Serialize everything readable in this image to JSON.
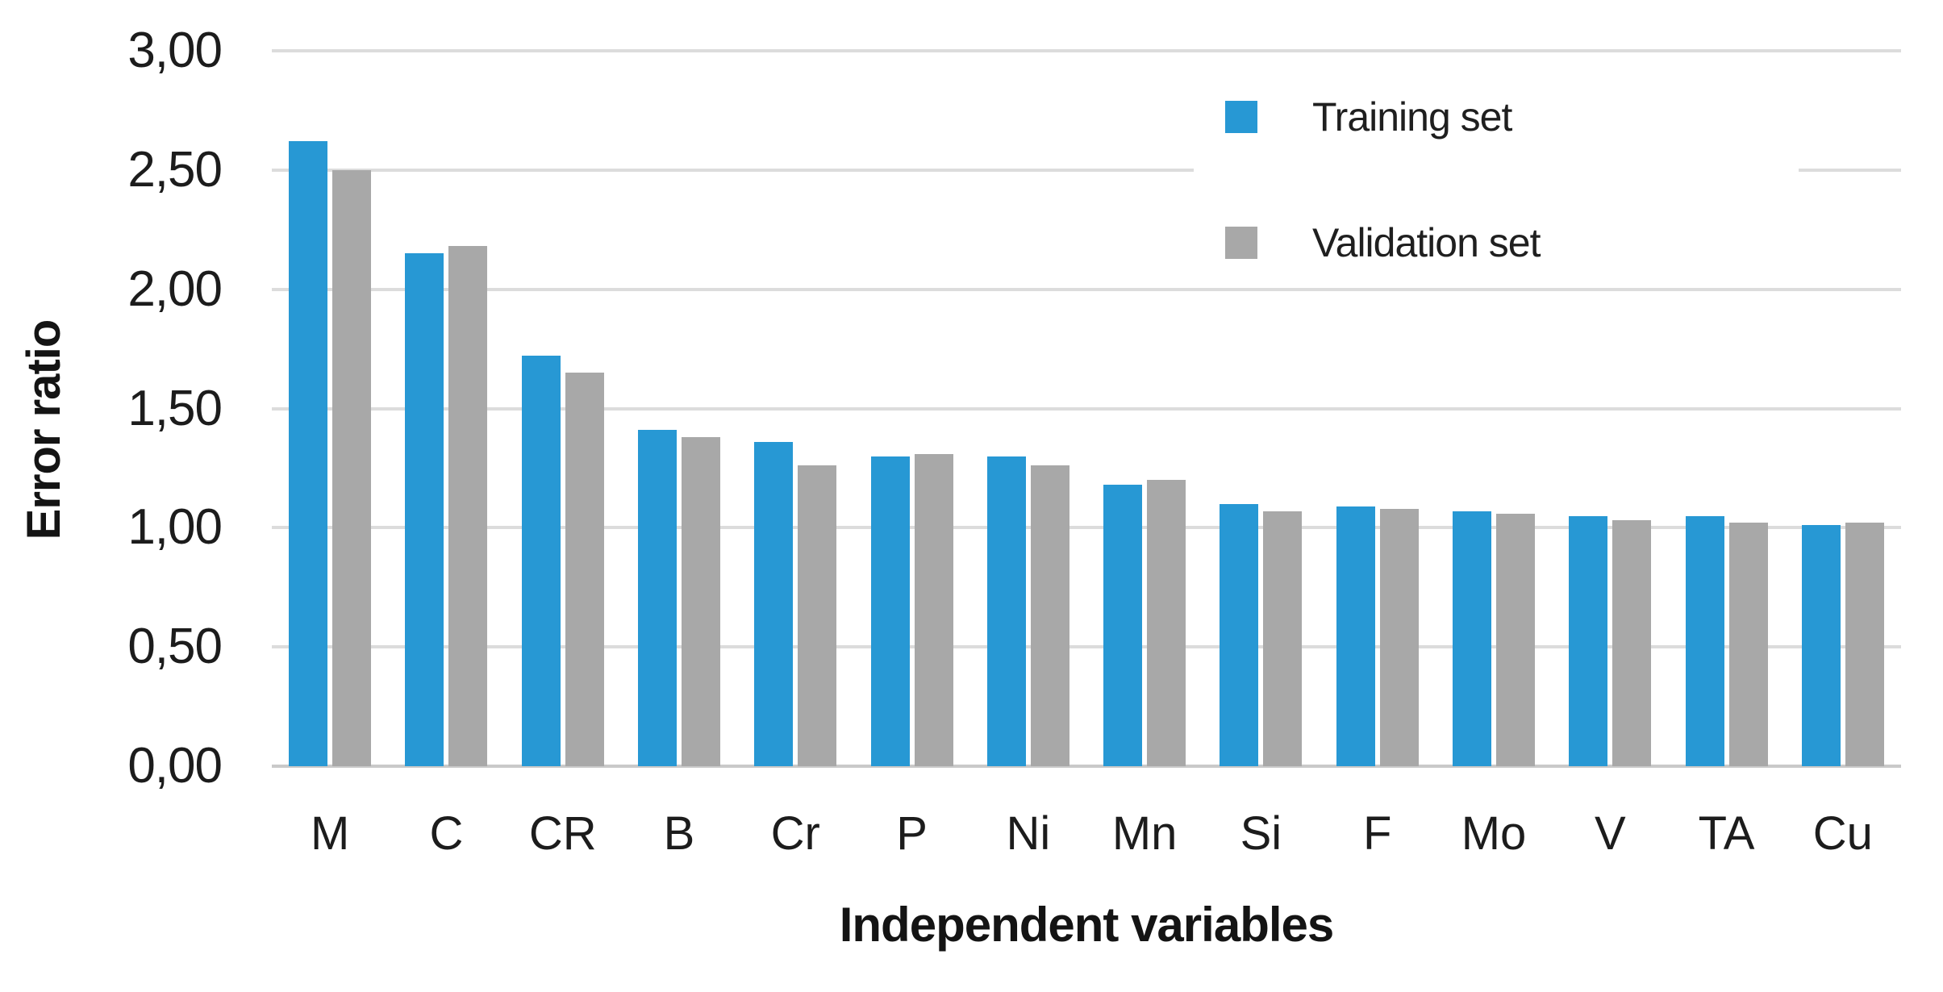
{
  "figure": {
    "y_axis_title": "Error ratio",
    "x_axis_title": "Independent variables"
  },
  "colors": {
    "training_blue": "#2798D4",
    "validation_gray": "#A8A8A8",
    "gridline": "#DCDCDC",
    "baseline": "#C9C9C9",
    "text": "#1C1C1C"
  },
  "legend": {
    "items": [
      {
        "label": "Training set",
        "color": "#2798D4"
      },
      {
        "label": "Validation set",
        "color": "#A8A8A8"
      }
    ]
  },
  "chart_data": {
    "type": "bar",
    "title": "",
    "xlabel": "Independent variables",
    "ylabel": "Error ratio",
    "categories": [
      "M",
      "C",
      "CR",
      "B",
      "Cr",
      "P",
      "Ni",
      "Mn",
      "Si",
      "F",
      "Mo",
      "V",
      "TA",
      "Cu"
    ],
    "series": [
      {
        "name": "Training set",
        "color": "#2798D4",
        "values": [
          2.62,
          2.15,
          1.72,
          1.41,
          1.36,
          1.3,
          1.3,
          1.18,
          1.1,
          1.09,
          1.07,
          1.05,
          1.05,
          1.01
        ]
      },
      {
        "name": "Validation set",
        "color": "#A8A8A8",
        "values": [
          2.5,
          2.18,
          1.65,
          1.38,
          1.26,
          1.31,
          1.26,
          1.2,
          1.07,
          1.08,
          1.06,
          1.03,
          1.02,
          1.02
        ]
      }
    ],
    "ylim": [
      0,
      3
    ],
    "yticks": [
      {
        "value": 0.0,
        "label": "0,00"
      },
      {
        "value": 0.5,
        "label": "0,50"
      },
      {
        "value": 1.0,
        "label": "1,00"
      },
      {
        "value": 1.5,
        "label": "1,50"
      },
      {
        "value": 2.0,
        "label": "2,00"
      },
      {
        "value": 2.5,
        "label": "2,50"
      },
      {
        "value": 3.0,
        "label": "3,00"
      }
    ],
    "decimal_separator": ",",
    "grid": true,
    "legend_position": "upper-right-inside"
  }
}
